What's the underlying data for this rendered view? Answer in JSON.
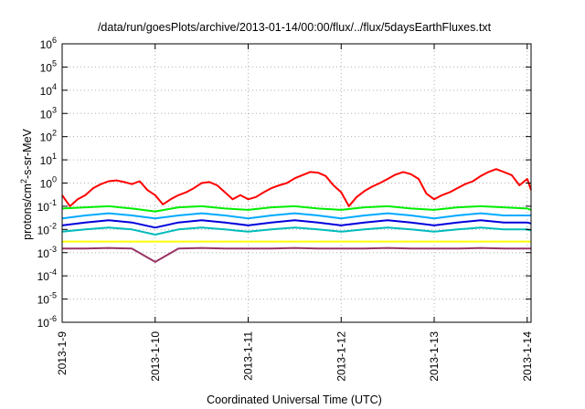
{
  "chart_data": {
    "type": "line",
    "title": "/data/run/goesPlots/archive/2013-01-14/00:00/flux/../flux/5daysEarthFluxes.txt",
    "xlabel": "Coordinated Universal Time (UTC)",
    "ylabel": {
      "prefix": "protons/cm",
      "exponent": "2",
      "suffix": "-s-sr-MeV"
    },
    "xlim": [
      "2013-01-09T00:00",
      "2013-01-14T01:00"
    ],
    "ylim": [
      1e-06,
      1000000.0
    ],
    "yscale": "log",
    "grid": true,
    "x_ticks": [
      "2013-1-9",
      "2013-1-10",
      "2013-1-11",
      "2013-1-12",
      "2013-1-13",
      "2013-1-14"
    ],
    "x_tick_dates": [
      "2013-01-09",
      "2013-01-10",
      "2013-01-11",
      "2013-01-12",
      "2013-01-13",
      "2013-01-14"
    ],
    "y_ticks": [
      {
        "base": "10",
        "exp": "-6"
      },
      {
        "base": "10",
        "exp": "-5"
      },
      {
        "base": "10",
        "exp": "-4"
      },
      {
        "base": "10",
        "exp": "-3"
      },
      {
        "base": "10",
        "exp": "-2"
      },
      {
        "base": "10",
        "exp": "-1"
      },
      {
        "base": "10",
        "exp": "0"
      },
      {
        "base": "10",
        "exp": "1"
      },
      {
        "base": "10",
        "exp": "2"
      },
      {
        "base": "10",
        "exp": "3"
      },
      {
        "base": "10",
        "exp": "4"
      },
      {
        "base": "10",
        "exp": "5"
      },
      {
        "base": "10",
        "exp": "6"
      }
    ],
    "y_tick_values": [
      1e-06,
      1e-05,
      0.0001,
      0.001,
      0.01,
      0.1,
      1.0,
      10.0,
      100.0,
      1000.0,
      10000.0,
      100000.0,
      1000000.0
    ],
    "series": [
      {
        "color": "#ff0000",
        "x": [
          "2013-01-09T00:00",
          "2013-01-09T02:00",
          "2013-01-09T04:00",
          "2013-01-09T06:00",
          "2013-01-09T08:00",
          "2013-01-09T10:00",
          "2013-01-09T12:00",
          "2013-01-09T14:00",
          "2013-01-09T16:00",
          "2013-01-09T18:00",
          "2013-01-09T20:00",
          "2013-01-09T22:00",
          "2013-01-10T00:00",
          "2013-01-10T02:00",
          "2013-01-10T04:00",
          "2013-01-10T06:00",
          "2013-01-10T08:00",
          "2013-01-10T10:00",
          "2013-01-10T12:00",
          "2013-01-10T14:00",
          "2013-01-10T16:00",
          "2013-01-10T18:00",
          "2013-01-10T20:00",
          "2013-01-10T22:00",
          "2013-01-11T00:00",
          "2013-01-11T02:00",
          "2013-01-11T04:00",
          "2013-01-11T06:00",
          "2013-01-11T08:00",
          "2013-01-11T10:00",
          "2013-01-11T12:00",
          "2013-01-11T14:00",
          "2013-01-11T16:00",
          "2013-01-11T18:00",
          "2013-01-11T20:00",
          "2013-01-11T22:00",
          "2013-01-12T00:00",
          "2013-01-12T02:00",
          "2013-01-12T04:00",
          "2013-01-12T06:00",
          "2013-01-12T08:00",
          "2013-01-12T10:00",
          "2013-01-12T12:00",
          "2013-01-12T14:00",
          "2013-01-12T16:00",
          "2013-01-12T18:00",
          "2013-01-12T20:00",
          "2013-01-12T22:00",
          "2013-01-13T00:00",
          "2013-01-13T02:00",
          "2013-01-13T04:00",
          "2013-01-13T06:00",
          "2013-01-13T08:00",
          "2013-01-13T10:00",
          "2013-01-13T12:00",
          "2013-01-13T14:00",
          "2013-01-13T16:00",
          "2013-01-13T18:00",
          "2013-01-13T20:00",
          "2013-01-13T22:00",
          "2013-01-14T00:00",
          "2013-01-14T01:00"
        ],
        "y": [
          0.3,
          0.1,
          0.2,
          0.3,
          0.6,
          0.9,
          1.2,
          1.3,
          1.1,
          0.9,
          1.2,
          0.5,
          0.3,
          0.12,
          0.2,
          0.3,
          0.4,
          0.6,
          1.0,
          1.1,
          0.8,
          0.4,
          0.2,
          0.3,
          0.2,
          0.25,
          0.4,
          0.6,
          0.8,
          1.0,
          1.6,
          2.2,
          3.0,
          2.8,
          2.0,
          0.8,
          0.4,
          0.1,
          0.25,
          0.45,
          0.7,
          1.0,
          1.5,
          2.3,
          3.0,
          2.4,
          1.5,
          0.35,
          0.2,
          0.3,
          0.4,
          0.6,
          0.9,
          1.2,
          2.0,
          3.0,
          4.0,
          3.0,
          2.2,
          0.8,
          1.5,
          0.5
        ]
      },
      {
        "color": "#00ee00",
        "x": [
          "2013-01-09T00:00",
          "2013-01-09T06:00",
          "2013-01-09T12:00",
          "2013-01-09T18:00",
          "2013-01-10T00:00",
          "2013-01-10T06:00",
          "2013-01-10T12:00",
          "2013-01-10T18:00",
          "2013-01-11T00:00",
          "2013-01-11T06:00",
          "2013-01-11T12:00",
          "2013-01-11T18:00",
          "2013-01-12T00:00",
          "2013-01-12T06:00",
          "2013-01-12T12:00",
          "2013-01-12T18:00",
          "2013-01-13T00:00",
          "2013-01-13T06:00",
          "2013-01-13T12:00",
          "2013-01-13T18:00",
          "2013-01-14T00:00",
          "2013-01-14T01:00"
        ],
        "y": [
          0.08,
          0.09,
          0.1,
          0.08,
          0.06,
          0.09,
          0.1,
          0.08,
          0.07,
          0.09,
          0.1,
          0.08,
          0.07,
          0.09,
          0.1,
          0.08,
          0.07,
          0.09,
          0.1,
          0.09,
          0.08,
          0.07
        ]
      },
      {
        "color": "#00aaff",
        "x": [
          "2013-01-09T00:00",
          "2013-01-09T06:00",
          "2013-01-09T12:00",
          "2013-01-09T18:00",
          "2013-01-10T00:00",
          "2013-01-10T06:00",
          "2013-01-10T12:00",
          "2013-01-10T18:00",
          "2013-01-11T00:00",
          "2013-01-11T06:00",
          "2013-01-11T12:00",
          "2013-01-11T18:00",
          "2013-01-12T00:00",
          "2013-01-12T06:00",
          "2013-01-12T12:00",
          "2013-01-12T18:00",
          "2013-01-13T00:00",
          "2013-01-13T06:00",
          "2013-01-13T12:00",
          "2013-01-13T18:00",
          "2013-01-14T00:00",
          "2013-01-14T01:00"
        ],
        "y": [
          0.03,
          0.04,
          0.05,
          0.04,
          0.03,
          0.04,
          0.05,
          0.04,
          0.03,
          0.04,
          0.05,
          0.04,
          0.03,
          0.04,
          0.05,
          0.04,
          0.03,
          0.04,
          0.05,
          0.04,
          0.04,
          0.04
        ]
      },
      {
        "color": "#0000dd",
        "x": [
          "2013-01-09T00:00",
          "2013-01-09T06:00",
          "2013-01-09T12:00",
          "2013-01-09T18:00",
          "2013-01-10T00:00",
          "2013-01-10T06:00",
          "2013-01-10T12:00",
          "2013-01-10T18:00",
          "2013-01-11T00:00",
          "2013-01-11T06:00",
          "2013-01-11T12:00",
          "2013-01-11T18:00",
          "2013-01-12T00:00",
          "2013-01-12T06:00",
          "2013-01-12T12:00",
          "2013-01-12T18:00",
          "2013-01-13T00:00",
          "2013-01-13T06:00",
          "2013-01-13T12:00",
          "2013-01-13T18:00",
          "2013-01-14T00:00",
          "2013-01-14T01:00"
        ],
        "y": [
          0.015,
          0.02,
          0.025,
          0.02,
          0.012,
          0.02,
          0.025,
          0.02,
          0.015,
          0.02,
          0.025,
          0.02,
          0.015,
          0.02,
          0.025,
          0.02,
          0.015,
          0.02,
          0.025,
          0.02,
          0.02,
          0.018
        ]
      },
      {
        "color": "#00bbbb",
        "x": [
          "2013-01-09T00:00",
          "2013-01-09T06:00",
          "2013-01-09T12:00",
          "2013-01-09T18:00",
          "2013-01-10T00:00",
          "2013-01-10T06:00",
          "2013-01-10T12:00",
          "2013-01-10T18:00",
          "2013-01-11T00:00",
          "2013-01-11T06:00",
          "2013-01-11T12:00",
          "2013-01-11T18:00",
          "2013-01-12T00:00",
          "2013-01-12T06:00",
          "2013-01-12T12:00",
          "2013-01-12T18:00",
          "2013-01-13T00:00",
          "2013-01-13T06:00",
          "2013-01-13T12:00",
          "2013-01-13T18:00",
          "2013-01-14T00:00",
          "2013-01-14T01:00"
        ],
        "y": [
          0.008,
          0.01,
          0.012,
          0.01,
          0.006,
          0.01,
          0.012,
          0.01,
          0.008,
          0.01,
          0.012,
          0.01,
          0.008,
          0.01,
          0.012,
          0.01,
          0.008,
          0.01,
          0.012,
          0.01,
          0.01,
          0.009
        ]
      },
      {
        "color": "#ffff00",
        "x": [
          "2013-01-09T00:00",
          "2013-01-09T12:00",
          "2013-01-10T00:00",
          "2013-01-10T12:00",
          "2013-01-11T00:00",
          "2013-01-11T12:00",
          "2013-01-12T00:00",
          "2013-01-12T12:00",
          "2013-01-13T00:00",
          "2013-01-13T12:00",
          "2013-01-14T00:00",
          "2013-01-14T01:00"
        ],
        "y": [
          0.003,
          0.003,
          0.003,
          0.003,
          0.003,
          0.003,
          0.003,
          0.003,
          0.003,
          0.003,
          0.003,
          0.003
        ]
      },
      {
        "color": "#993366",
        "x": [
          "2013-01-09T00:00",
          "2013-01-09T06:00",
          "2013-01-09T12:00",
          "2013-01-09T18:00",
          "2013-01-10T00:00",
          "2013-01-10T06:00",
          "2013-01-10T12:00",
          "2013-01-10T18:00",
          "2013-01-11T00:00",
          "2013-01-11T06:00",
          "2013-01-11T12:00",
          "2013-01-11T18:00",
          "2013-01-12T00:00",
          "2013-01-12T06:00",
          "2013-01-12T12:00",
          "2013-01-12T18:00",
          "2013-01-13T00:00",
          "2013-01-13T06:00",
          "2013-01-13T12:00",
          "2013-01-13T18:00",
          "2013-01-14T00:00",
          "2013-01-14T01:00"
        ],
        "y": [
          0.0015,
          0.0015,
          0.0016,
          0.0015,
          0.0004,
          0.0015,
          0.0016,
          0.0015,
          0.0015,
          0.0015,
          0.0016,
          0.0015,
          0.0015,
          0.0015,
          0.0016,
          0.0015,
          0.0015,
          0.0015,
          0.0016,
          0.0015,
          0.0015,
          0.0015
        ]
      }
    ]
  }
}
